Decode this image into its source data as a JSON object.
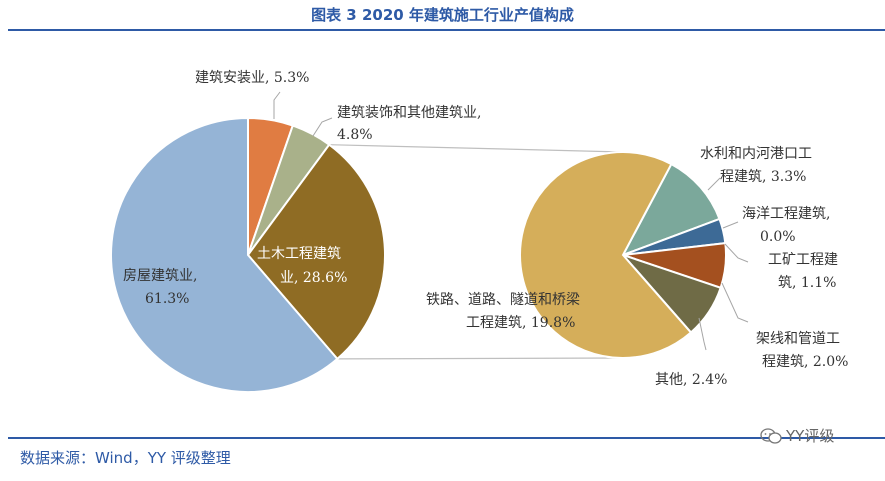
{
  "title": "图表 3 2020 年建筑施工行业产值构成",
  "source": "数据来源：Wind，YY 评级整理",
  "badge": "YY评级",
  "chart_data": {
    "type": "pie",
    "main": {
      "slices": [
        {
          "name": "房屋建筑业",
          "value": 61.3,
          "label": "房屋建筑业,",
          "pct": "61.3%",
          "color": "#95b4d6"
        },
        {
          "name": "土木工程建筑业",
          "value": 28.6,
          "label": "土木工程建筑",
          "label2": "业, 28.6%",
          "color": "#8f6c24"
        },
        {
          "name": "建筑装饰和其他建筑业",
          "value": 4.8,
          "label": "建筑装饰和其他建筑业,",
          "pct": "4.8%",
          "color": "#a9b18a"
        },
        {
          "name": "建筑安装业",
          "value": 5.3,
          "label": "建筑安装业, 5.3%",
          "color": "#e07c42"
        }
      ]
    },
    "breakout": {
      "parent": "土木工程建筑业",
      "slices": [
        {
          "name": "铁路、道路、隧道和桥梁工程建筑",
          "value": 19.8,
          "label": "铁路、道路、隧道和桥梁",
          "label2": "工程建筑, 19.8%",
          "color": "#d5ae5a"
        },
        {
          "name": "水利和内河港口工程建筑",
          "value": 3.3,
          "label": "水利和内河港口工",
          "label2": "程建筑, 3.3%",
          "color": "#7ba89b"
        },
        {
          "name": "海洋工程建筑",
          "value": 0.0,
          "label": "海洋工程建筑,",
          "label2": "0.0%",
          "color": "#7a9a8e"
        },
        {
          "name": "工矿工程建筑",
          "value": 1.1,
          "label": "工矿工程建",
          "label2": "筑, 1.1%",
          "color": "#3d6a96"
        },
        {
          "name": "架线和管道工程建筑",
          "value": 2.0,
          "label": "架线和管道工",
          "label2": "程建筑, 2.0%",
          "color": "#a4501f"
        },
        {
          "name": "其他",
          "value": 2.4,
          "label": "其他, 2.4%",
          "color": "#6f6b46"
        }
      ]
    }
  }
}
